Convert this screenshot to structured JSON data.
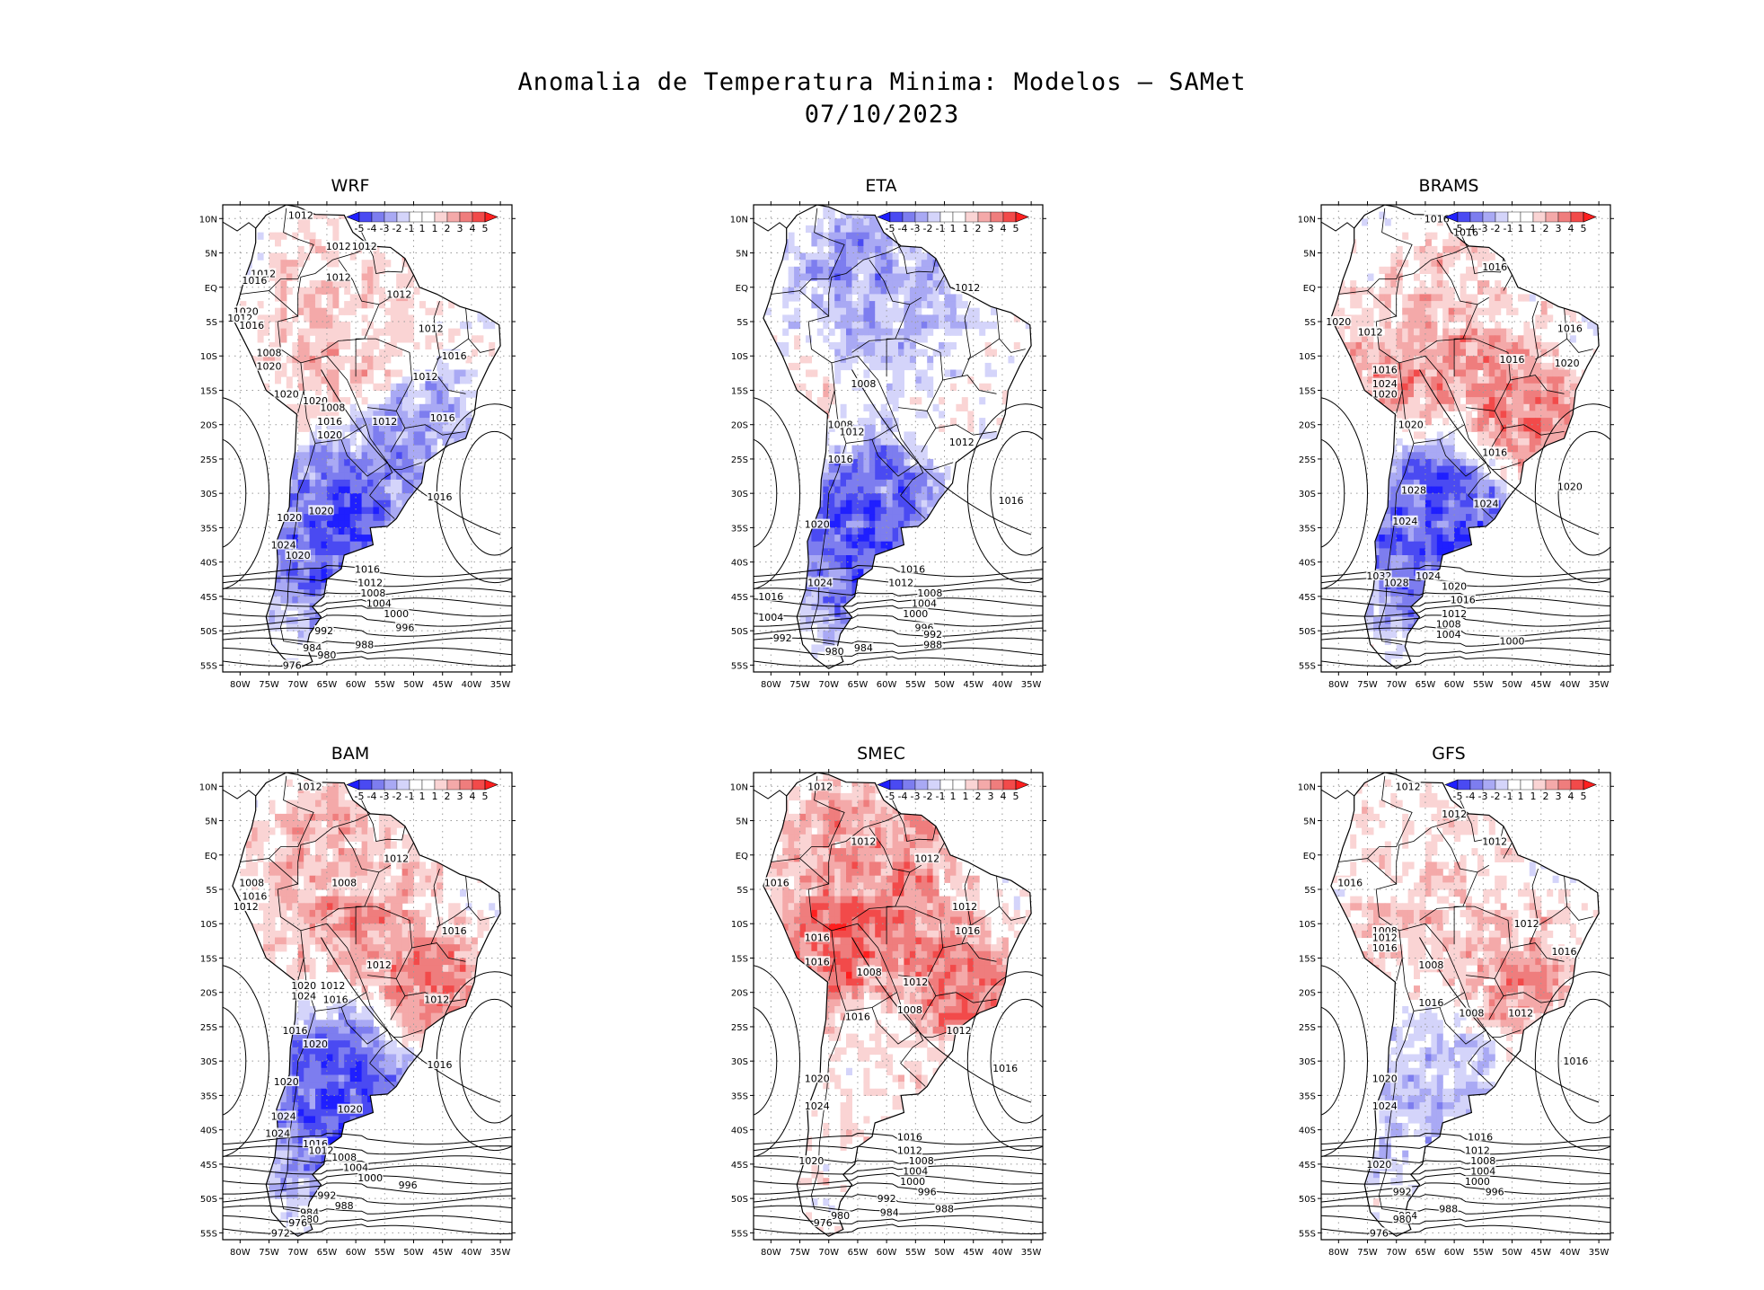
{
  "figure": {
    "title_line1": "Anomalia de Temperatura Minima: Modelos — SAMet",
    "title_line2": "07/10/2023"
  },
  "axes": {
    "lat_labels": [
      "10N",
      "5N",
      "EQ",
      "5S",
      "10S",
      "15S",
      "20S",
      "25S",
      "30S",
      "35S",
      "40S",
      "45S",
      "50S",
      "55S"
    ],
    "lon_labels": [
      "80W",
      "75W",
      "70W",
      "65W",
      "60W",
      "55W",
      "50W",
      "45W",
      "40W",
      "35W"
    ],
    "lat_range": [
      -56,
      12
    ],
    "lon_range": [
      -83,
      -33
    ]
  },
  "colorbar": {
    "labels": [
      "-5",
      "-4",
      "-3",
      "-2",
      "-1",
      "1",
      "1",
      "2",
      "3",
      "4",
      "5"
    ],
    "colors": [
      "#1f1fff",
      "#4a4af2",
      "#7d7def",
      "#a9a9f4",
      "#d4d4fa",
      "#ffffff",
      "#ffffff",
      "#fad4d4",
      "#f4a9a9",
      "#ef7d7d",
      "#f24a4a",
      "#ff1f1f"
    ]
  },
  "panels": [
    {
      "name": "WRF",
      "bias": [
        1,
        2,
        1,
        -3,
        -5
      ],
      "isobars": [
        {
          "label": "1012",
          "lon": -69.5,
          "lat": 10.5
        },
        {
          "label": "1012",
          "lon": -63,
          "lat": 6
        },
        {
          "label": "1012",
          "lon": -58.5,
          "lat": 6
        },
        {
          "label": "1012",
          "lon": -76,
          "lat": 2
        },
        {
          "label": "1016",
          "lon": -77.5,
          "lat": 1
        },
        {
          "label": "1012",
          "lon": -63,
          "lat": 1.5
        },
        {
          "label": "1012",
          "lon": -52.5,
          "lat": -1
        },
        {
          "label": "1020",
          "lon": -79,
          "lat": -3.5
        },
        {
          "label": "1012",
          "lon": -80,
          "lat": -4.5
        },
        {
          "label": "1016",
          "lon": -78,
          "lat": -5.5
        },
        {
          "label": "1012",
          "lon": -47,
          "lat": -6
        },
        {
          "label": "1008",
          "lon": -75,
          "lat": -9.5
        },
        {
          "label": "1016",
          "lon": -43,
          "lat": -10
        },
        {
          "label": "1020",
          "lon": -75,
          "lat": -11.5
        },
        {
          "label": "1012",
          "lon": -48,
          "lat": -13
        },
        {
          "label": "1020",
          "lon": -72,
          "lat": -15.5
        },
        {
          "label": "1020",
          "lon": -67,
          "lat": -16.5
        },
        {
          "label": "1008",
          "lon": -64,
          "lat": -17.5
        },
        {
          "label": "1016",
          "lon": -64.5,
          "lat": -19.5
        },
        {
          "label": "1012",
          "lon": -55,
          "lat": -19.5
        },
        {
          "label": "1016",
          "lon": -45,
          "lat": -19
        },
        {
          "label": "1020",
          "lon": -64.5,
          "lat": -21.5
        },
        {
          "label": "1016",
          "lon": -45.5,
          "lat": -30.5
        },
        {
          "label": "1020",
          "lon": -66,
          "lat": -32.5
        },
        {
          "label": "1020",
          "lon": -71.5,
          "lat": -33.5
        },
        {
          "label": "1024",
          "lon": -72.5,
          "lat": -37.5
        },
        {
          "label": "1020",
          "lon": -70,
          "lat": -39
        },
        {
          "label": "1016",
          "lon": -58,
          "lat": -41
        },
        {
          "label": "1012",
          "lon": -57.5,
          "lat": -43
        },
        {
          "label": "1008",
          "lon": -57,
          "lat": -44.5
        },
        {
          "label": "1004",
          "lon": -56,
          "lat": -46
        },
        {
          "label": "1000",
          "lon": -53,
          "lat": -47.5
        },
        {
          "label": "996",
          "lon": -51.5,
          "lat": -49.5
        },
        {
          "label": "992",
          "lon": -65.5,
          "lat": -50
        },
        {
          "label": "988",
          "lon": -58.5,
          "lat": -52
        },
        {
          "label": "984",
          "lon": -67.5,
          "lat": -52.5
        },
        {
          "label": "980",
          "lon": -65,
          "lat": -53.5
        },
        {
          "label": "976",
          "lon": -71,
          "lat": -55
        }
      ]
    },
    {
      "name": "ETA",
      "bias": [
        -3,
        -2,
        1,
        0,
        -5
      ],
      "isobars": [
        {
          "label": "1012",
          "lon": -46,
          "lat": 0
        },
        {
          "label": "1008",
          "lon": -64,
          "lat": -14
        },
        {
          "label": "1008",
          "lon": -68,
          "lat": -20
        },
        {
          "label": "1012",
          "lon": -66,
          "lat": -21
        },
        {
          "label": "1012",
          "lon": -47,
          "lat": -22.5
        },
        {
          "label": "1016",
          "lon": -68,
          "lat": -25
        },
        {
          "label": "1016",
          "lon": -38.5,
          "lat": -31
        },
        {
          "label": "1020",
          "lon": -72,
          "lat": -34.5
        },
        {
          "label": "1016",
          "lon": -55.5,
          "lat": -41
        },
        {
          "label": "1012",
          "lon": -57.5,
          "lat": -43
        },
        {
          "label": "1024",
          "lon": -71.5,
          "lat": -43
        },
        {
          "label": "1008",
          "lon": -52.5,
          "lat": -44.5
        },
        {
          "label": "1016",
          "lon": -80,
          "lat": -45
        },
        {
          "label": "1004",
          "lon": -53.5,
          "lat": -46
        },
        {
          "label": "1000",
          "lon": -55,
          "lat": -47.5
        },
        {
          "label": "1004",
          "lon": -80,
          "lat": -48
        },
        {
          "label": "996",
          "lon": -53.5,
          "lat": -49.5
        },
        {
          "label": "992",
          "lon": -78,
          "lat": -51
        },
        {
          "label": "992",
          "lon": -52,
          "lat": -50.5
        },
        {
          "label": "988",
          "lon": -52,
          "lat": -52
        },
        {
          "label": "984",
          "lon": -64,
          "lat": -52.5
        },
        {
          "label": "980",
          "lon": -69,
          "lat": -53
        }
      ]
    },
    {
      "name": "BRAMS",
      "bias": [
        1,
        3,
        3,
        4,
        -5
      ],
      "isobars": [
        {
          "label": "1016",
          "lon": -63,
          "lat": 10
        },
        {
          "label": "1016",
          "lon": -58,
          "lat": 8
        },
        {
          "label": "1016",
          "lon": -53,
          "lat": 3
        },
        {
          "label": "1020",
          "lon": -80,
          "lat": -5
        },
        {
          "label": "1012",
          "lon": -74.5,
          "lat": -6.5
        },
        {
          "label": "1016",
          "lon": -40,
          "lat": -6
        },
        {
          "label": "1016",
          "lon": -50,
          "lat": -10.5
        },
        {
          "label": "1020",
          "lon": -40.5,
          "lat": -11
        },
        {
          "label": "1016",
          "lon": -72,
          "lat": -12
        },
        {
          "label": "1024",
          "lon": -72,
          "lat": -14
        },
        {
          "label": "1020",
          "lon": -72,
          "lat": -15.5
        },
        {
          "label": "1020",
          "lon": -67.5,
          "lat": -20
        },
        {
          "label": "1016",
          "lon": -53,
          "lat": -24
        },
        {
          "label": "1020",
          "lon": -40,
          "lat": -29
        },
        {
          "label": "1028",
          "lon": -67,
          "lat": -29.5
        },
        {
          "label": "1024",
          "lon": -54.5,
          "lat": -31.5
        },
        {
          "label": "1024",
          "lon": -68.5,
          "lat": -34
        },
        {
          "label": "1032",
          "lon": -73,
          "lat": -42
        },
        {
          "label": "1024",
          "lon": -64.5,
          "lat": -42
        },
        {
          "label": "1028",
          "lon": -70,
          "lat": -43
        },
        {
          "label": "1020",
          "lon": -60,
          "lat": -43.5
        },
        {
          "label": "1016",
          "lon": -58.5,
          "lat": -45.5
        },
        {
          "label": "1012",
          "lon": -60,
          "lat": -47.5
        },
        {
          "label": "1008",
          "lon": -61,
          "lat": -49
        },
        {
          "label": "1004",
          "lon": -61,
          "lat": -50.5
        },
        {
          "label": "1000",
          "lon": -50,
          "lat": -51.5
        }
      ]
    },
    {
      "name": "BAM",
      "bias": [
        2,
        3,
        1,
        4,
        -5
      ],
      "isobars": [
        {
          "label": "1012",
          "lon": -68,
          "lat": 10
        },
        {
          "label": "1012",
          "lon": -53,
          "lat": -0.5
        },
        {
          "label": "1008",
          "lon": -78,
          "lat": -4
        },
        {
          "label": "1008",
          "lon": -62,
          "lat": -4
        },
        {
          "label": "1016",
          "lon": -77.5,
          "lat": -6
        },
        {
          "label": "1012",
          "lon": -79,
          "lat": -7.5
        },
        {
          "label": "1016",
          "lon": -43,
          "lat": -11
        },
        {
          "label": "1012",
          "lon": -56,
          "lat": -16
        },
        {
          "label": "1012",
          "lon": -64,
          "lat": -19
        },
        {
          "label": "1020",
          "lon": -69,
          "lat": -19
        },
        {
          "label": "1024",
          "lon": -69,
          "lat": -20.5
        },
        {
          "label": "1016",
          "lon": -63.5,
          "lat": -21
        },
        {
          "label": "1012",
          "lon": -46,
          "lat": -21
        },
        {
          "label": "1016",
          "lon": -70.5,
          "lat": -25.5
        },
        {
          "label": "1020",
          "lon": -67,
          "lat": -27.5
        },
        {
          "label": "1016",
          "lon": -45.5,
          "lat": -30.5
        },
        {
          "label": "1020",
          "lon": -72,
          "lat": -33
        },
        {
          "label": "1020",
          "lon": -61,
          "lat": -37
        },
        {
          "label": "1024",
          "lon": -72.5,
          "lat": -38
        },
        {
          "label": "1024",
          "lon": -73.5,
          "lat": -40.5
        },
        {
          "label": "1016",
          "lon": -67,
          "lat": -42
        },
        {
          "label": "1012",
          "lon": -66,
          "lat": -43
        },
        {
          "label": "1008",
          "lon": -62,
          "lat": -44
        },
        {
          "label": "1004",
          "lon": -60,
          "lat": -45.5
        },
        {
          "label": "1000",
          "lon": -57.5,
          "lat": -47
        },
        {
          "label": "996",
          "lon": -51,
          "lat": -48
        },
        {
          "label": "992",
          "lon": -65,
          "lat": -49.5
        },
        {
          "label": "988",
          "lon": -62,
          "lat": -51
        },
        {
          "label": "984",
          "lon": -68,
          "lat": -52
        },
        {
          "label": "980",
          "lon": -68,
          "lat": -53
        },
        {
          "label": "976",
          "lon": -70,
          "lat": -53.5
        },
        {
          "label": "972",
          "lon": -73,
          "lat": -55
        }
      ]
    },
    {
      "name": "SMEC",
      "bias": [
        3,
        4,
        4,
        4,
        1
      ],
      "isobars": [
        {
          "label": "1012",
          "lon": -71.5,
          "lat": 10
        },
        {
          "label": "1012",
          "lon": -64,
          "lat": 2
        },
        {
          "label": "1012",
          "lon": -53,
          "lat": -0.5
        },
        {
          "label": "1016",
          "lon": -79,
          "lat": -4
        },
        {
          "label": "1012",
          "lon": -46.5,
          "lat": -7.5
        },
        {
          "label": "1016",
          "lon": -46,
          "lat": -11
        },
        {
          "label": "1016",
          "lon": -72,
          "lat": -12
        },
        {
          "label": "1016",
          "lon": -72,
          "lat": -15.5
        },
        {
          "label": "1008",
          "lon": -63,
          "lat": -17
        },
        {
          "label": "1012",
          "lon": -55,
          "lat": -18.5
        },
        {
          "label": "1008",
          "lon": -56,
          "lat": -22.5
        },
        {
          "label": "1016",
          "lon": -65,
          "lat": -23.5
        },
        {
          "label": "1012",
          "lon": -47.5,
          "lat": -25.5
        },
        {
          "label": "1016",
          "lon": -39.5,
          "lat": -31
        },
        {
          "label": "1020",
          "lon": -72,
          "lat": -32.5
        },
        {
          "label": "1024",
          "lon": -72,
          "lat": -36.5
        },
        {
          "label": "1016",
          "lon": -56,
          "lat": -41
        },
        {
          "label": "1012",
          "lon": -56,
          "lat": -43
        },
        {
          "label": "1020",
          "lon": -73,
          "lat": -44.5
        },
        {
          "label": "1008",
          "lon": -54,
          "lat": -44.5
        },
        {
          "label": "1004",
          "lon": -55,
          "lat": -46
        },
        {
          "label": "1000",
          "lon": -55.5,
          "lat": -47.5
        },
        {
          "label": "996",
          "lon": -53,
          "lat": -49
        },
        {
          "label": "992",
          "lon": -60,
          "lat": -50
        },
        {
          "label": "988",
          "lon": -50,
          "lat": -51.5
        },
        {
          "label": "984",
          "lon": -59.5,
          "lat": -52
        },
        {
          "label": "980",
          "lon": -68,
          "lat": -52.5
        },
        {
          "label": "976",
          "lon": -71,
          "lat": -53.5
        }
      ]
    },
    {
      "name": "GFS",
      "bias": [
        1,
        2,
        1,
        3,
        -2
      ],
      "isobars": [
        {
          "label": "1012",
          "lon": -68,
          "lat": 10
        },
        {
          "label": "1012",
          "lon": -60,
          "lat": 6
        },
        {
          "label": "1012",
          "lon": -53,
          "lat": 2
        },
        {
          "label": "1016",
          "lon": -78,
          "lat": -4
        },
        {
          "label": "1012",
          "lon": -47.5,
          "lat": -10
        },
        {
          "label": "1008",
          "lon": -72,
          "lat": -11
        },
        {
          "label": "1012",
          "lon": -72,
          "lat": -12
        },
        {
          "label": "1016",
          "lon": -72,
          "lat": -13.5
        },
        {
          "label": "1016",
          "lon": -41,
          "lat": -14
        },
        {
          "label": "1008",
          "lon": -64,
          "lat": -16
        },
        {
          "label": "1016",
          "lon": -64,
          "lat": -21.5
        },
        {
          "label": "1008",
          "lon": -57,
          "lat": -23
        },
        {
          "label": "1012",
          "lon": -48.5,
          "lat": -23
        },
        {
          "label": "1016",
          "lon": -39,
          "lat": -30
        },
        {
          "label": "1020",
          "lon": -72,
          "lat": -32.5
        },
        {
          "label": "1024",
          "lon": -72,
          "lat": -36.5
        },
        {
          "label": "1016",
          "lon": -55.5,
          "lat": -41
        },
        {
          "label": "1012",
          "lon": -56,
          "lat": -43
        },
        {
          "label": "1020",
          "lon": -73,
          "lat": -45
        },
        {
          "label": "1008",
          "lon": -55,
          "lat": -44.5
        },
        {
          "label": "1004",
          "lon": -55,
          "lat": -46
        },
        {
          "label": "1000",
          "lon": -56,
          "lat": -47.5
        },
        {
          "label": "996",
          "lon": -53,
          "lat": -49
        },
        {
          "label": "992",
          "lon": -69,
          "lat": -49
        },
        {
          "label": "988",
          "lon": -61,
          "lat": -51.5
        },
        {
          "label": "984",
          "lon": -68,
          "lat": -52.5
        },
        {
          "label": "980",
          "lon": -69,
          "lat": -53
        },
        {
          "label": "976",
          "lon": -73,
          "lat": -55
        }
      ]
    }
  ]
}
